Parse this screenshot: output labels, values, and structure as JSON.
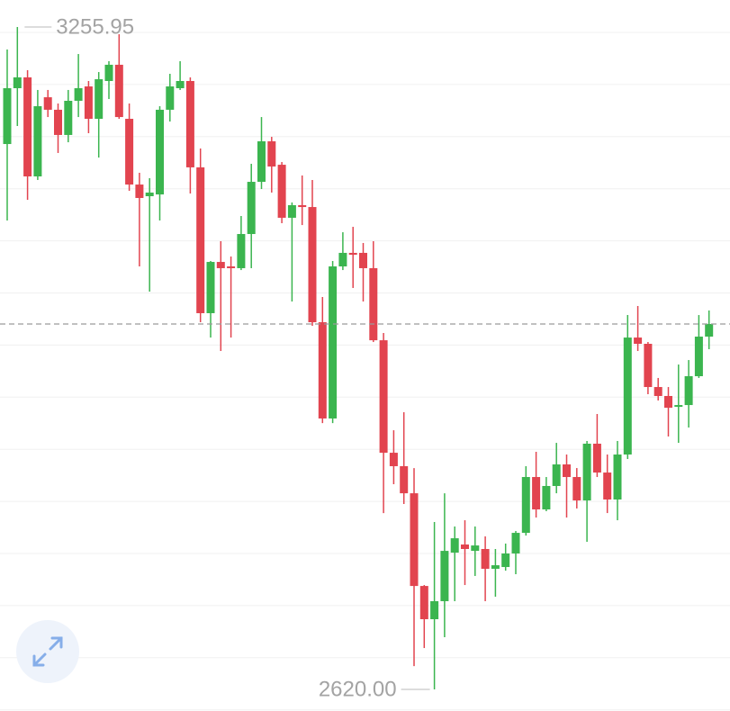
{
  "chart_data": {
    "type": "candlestick",
    "max_label": "3255.95",
    "min_label": "2620.00",
    "up_color": "#3bb54f",
    "down_color": "#e2444f",
    "grid": true,
    "last_price_line": true,
    "open": [
      3143.6,
      3197.2,
      3207.6,
      3112.5,
      3188.5,
      3176.5,
      3152.3,
      3185.1,
      3198.9,
      3167.8,
      3204.1,
      3219.7,
      3167.8,
      3104.7,
      3093.5,
      3095.2,
      3176.5,
      3197.2,
      3204.1,
      3121.2,
      2981.2,
      3030.4,
      3026.1,
      3024.4,
      3057.2,
      3107.3,
      3146.2,
      3123.7,
      3072.8,
      3084.9,
      3083.1,
      2972.5,
      2880.1,
      3026.1,
      3039.1,
      3039.1,
      3024.4,
      2955.2,
      2847.2,
      2834.3,
      2808.3,
      2719.3,
      2687.4,
      2704.7,
      2751.3,
      2759.1,
      2753.0,
      2754.8,
      2735.8,
      2737.5,
      2750.5,
      2770.3,
      2823.9,
      2792.8,
      2815.3,
      2836.0,
      2823.9,
      2801.4,
      2855.9,
      2828.2,
      2802.3,
      2845.5,
      2957.8,
      2951.8,
      2910.3,
      2901.7,
      2891.3,
      2893.0,
      2920.7,
      2958.7
    ],
    "high": [
      3234.3,
      3255.95,
      3214.5,
      3195.5,
      3195.5,
      3182.5,
      3195.5,
      3230.0,
      3204.1,
      3212.7,
      3223.1,
      3249.0,
      3182.5,
      3116.0,
      3110.8,
      3179.9,
      3211.0,
      3223.1,
      3207.6,
      3139.3,
      3031.3,
      3050.3,
      3035.6,
      3074.5,
      3124.6,
      3169.5,
      3150.5,
      3126.3,
      3087.5,
      3113.4,
      3109.1,
      2996.7,
      3031.3,
      3058.9,
      3064.1,
      3048.6,
      3050.3,
      2962.2,
      2868.8,
      2886.1,
      2832.5,
      2720.2,
      2780.7,
      2808.3,
      2776.4,
      2782.4,
      2776.4,
      2766.9,
      2754.8,
      2760.0,
      2772.1,
      2834.3,
      2848.1,
      2823.9,
      2856.7,
      2845.5,
      2832.5,
      2858.5,
      2884.4,
      2845.5,
      2858.5,
      2979.4,
      2988.1,
      2953.5,
      2919.0,
      2910.3,
      2931.9,
      2936.2,
      2979.4,
      2983.8
    ],
    "low": [
      3070.2,
      3160.9,
      3090.0,
      3109.1,
      3169.5,
      3135.0,
      3145.3,
      3169.5,
      3154.0,
      3130.6,
      3186.8,
      3167.8,
      3098.7,
      3026.1,
      3001.9,
      3070.2,
      3165.2,
      3195.5,
      3096.1,
      2972.5,
      2957.8,
      2944.9,
      2957.8,
      3022.6,
      3024.4,
      3100.4,
      3097.0,
      3067.6,
      2992.4,
      3065.8,
      2969.1,
      2875.7,
      2875.7,
      3022.6,
      3005.4,
      2992.4,
      2953.5,
      2789.3,
      2817.0,
      2798.0,
      2642.4,
      2659.7,
      2620.0,
      2670.1,
      2704.7,
      2720.2,
      2728.9,
      2704.7,
      2709.0,
      2734.0,
      2730.6,
      2767.7,
      2785.0,
      2791.1,
      2808.3,
      2785.0,
      2793.7,
      2761.7,
      2823.9,
      2789.3,
      2782.4,
      2841.2,
      2944.9,
      2903.4,
      2897.4,
      2862.8,
      2856.7,
      2871.4,
      2919.0,
      2946.6
    ],
    "close": [
      3197.2,
      3207.6,
      3112.5,
      3179.9,
      3176.5,
      3152.3,
      3185.1,
      3197.2,
      3167.8,
      3205.8,
      3219.7,
      3169.5,
      3104.7,
      3091.8,
      3097.0,
      3176.5,
      3198.9,
      3204.1,
      3121.2,
      2981.2,
      3030.4,
      3024.4,
      3024.4,
      3057.2,
      3107.3,
      3146.2,
      3122.0,
      3072.8,
      3084.9,
      3083.1,
      2972.5,
      2880.1,
      3026.1,
      3039.1,
      3037.3,
      3024.4,
      2955.2,
      2847.2,
      2834.3,
      2808.3,
      2719.3,
      2687.4,
      2704.7,
      2753.0,
      2765.1,
      2754.8,
      2758.2,
      2735.8,
      2739.2,
      2750.5,
      2770.3,
      2823.9,
      2792.8,
      2815.3,
      2836.0,
      2823.9,
      2801.4,
      2855.9,
      2828.2,
      2802.3,
      2845.5,
      2957.8,
      2951.8,
      2910.3,
      2901.7,
      2890.4,
      2893.0,
      2920.7,
      2958.7,
      2970.8
    ]
  }
}
